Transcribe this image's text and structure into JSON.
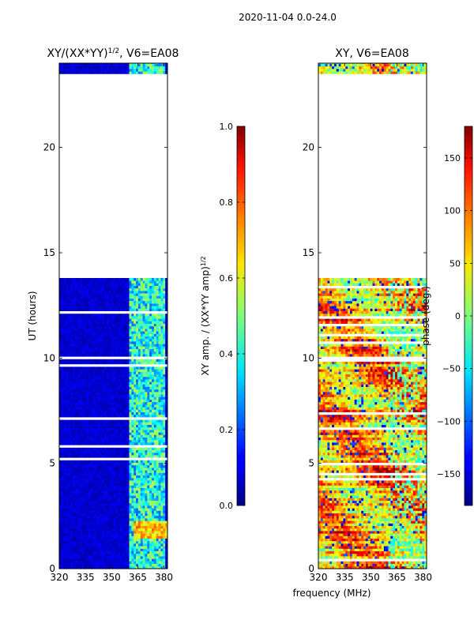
{
  "suptitle": "2020-11-04 0.0-24.0",
  "shared_xlabel": "frequency (MHz)",
  "chart_data": [
    {
      "type": "heatmap",
      "title": "XY/(XX*YY)",
      "title_sup": "1/2",
      "title_tail": ", V6=EA08",
      "xlabel": "",
      "ylabel": "UT (hours)",
      "xlim": [
        320,
        382
      ],
      "ylim": [
        0,
        24
      ],
      "xticks": [
        320,
        335,
        350,
        365,
        380
      ],
      "yticks": [
        0,
        5,
        10,
        15,
        20
      ],
      "data_blocks": [
        [
          0,
          13.8
        ],
        [
          23.5,
          24
        ]
      ],
      "high_band": [
        360,
        380
      ],
      "colorbar": {
        "label": "XY amp. / (XX*YY amp)",
        "label_sup": "1/2",
        "range": [
          0,
          1
        ],
        "ticks": [
          "0.0",
          "0.2",
          "0.4",
          "0.6",
          "0.8",
          "1.0"
        ],
        "tick_values": [
          0,
          0.2,
          0.4,
          0.6,
          0.8,
          1.0
        ]
      }
    },
    {
      "type": "heatmap",
      "title": "XY, V6=EA08",
      "xlabel": "",
      "ylabel": "",
      "xlim": [
        320,
        382
      ],
      "ylim": [
        0,
        24
      ],
      "xticks": [
        320,
        335,
        350,
        365,
        380
      ],
      "yticks": [
        0,
        5,
        10,
        15,
        20
      ],
      "data_blocks": [
        [
          0,
          13.8
        ],
        [
          23.5,
          24
        ]
      ],
      "colorbar": {
        "label": "phase (deg.)",
        "range": [
          -180,
          180
        ],
        "ticks": [
          "−150",
          "−100",
          "−50",
          "0",
          "50",
          "100",
          "150"
        ],
        "tick_values": [
          -150,
          -100,
          -50,
          0,
          50,
          100,
          150
        ]
      }
    }
  ]
}
